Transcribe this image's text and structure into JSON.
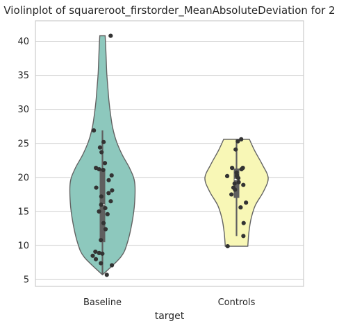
{
  "chart_data": {
    "type": "violin",
    "title": "Violinplot of squareroot_firstorder_MeanAbsoluteDeviation for 2",
    "xlabel": "target",
    "ylabel": "",
    "categories": [
      "Baseline",
      "Controls"
    ],
    "ylim": [
      4,
      43
    ],
    "yticks": [
      5,
      10,
      15,
      20,
      25,
      30,
      35,
      40
    ],
    "grid": true,
    "colors": {
      "Baseline": "#8dc8bd",
      "Controls": "#f8f7b6",
      "edge": "#636363",
      "box": "#5f5f5f",
      "points": "#333333"
    },
    "series": [
      {
        "category": "Baseline",
        "points": [
          40.8,
          26.9,
          25.2,
          24.4,
          23.7,
          22.1,
          21.4,
          21.2,
          21.1,
          20.3,
          19.6,
          18.5,
          18.1,
          17.7,
          17.2,
          16.5,
          16.0,
          15.5,
          15.0,
          14.6,
          13.3,
          12.4,
          10.8,
          9.1,
          8.9,
          8.8,
          8.5,
          8.0,
          7.4,
          7.1,
          5.7
        ],
        "box": {
          "q1": 10.5,
          "median": 16.0,
          "q3": 21.3,
          "whisker_low": 5.7,
          "whisker_high": 26.9
        },
        "density": [
          [
            5.7,
            0.0
          ],
          [
            8.3,
            0.34
          ],
          [
            10.3,
            0.46
          ],
          [
            13.3,
            0.55
          ],
          [
            16.3,
            0.6
          ],
          [
            19.3,
            0.6
          ],
          [
            21.3,
            0.51
          ],
          [
            23.3,
            0.37
          ],
          [
            25.3,
            0.26
          ],
          [
            27.3,
            0.19
          ],
          [
            29.3,
            0.15
          ],
          [
            31.3,
            0.12
          ],
          [
            33.3,
            0.1
          ],
          [
            35.3,
            0.08
          ],
          [
            37.3,
            0.07
          ],
          [
            39.3,
            0.06
          ],
          [
            40.8,
            0.05
          ]
        ]
      },
      {
        "category": "Controls",
        "points": [
          25.6,
          25.3,
          24.1,
          21.4,
          21.4,
          21.2,
          20.7,
          20.3,
          20.2,
          20.2,
          19.9,
          19.3,
          19.1,
          18.9,
          18.5,
          18.2,
          17.5,
          16.3,
          15.6,
          13.3,
          11.4,
          9.9
        ],
        "box": {
          "q1": 17.0,
          "median": 19.7,
          "q3": 21.3,
          "whisker_low": 11.4,
          "whisker_high": 25.6
        },
        "density": [
          [
            9.9,
            0.21
          ],
          [
            11.9,
            0.23
          ],
          [
            13.9,
            0.27
          ],
          [
            15.9,
            0.35
          ],
          [
            17.9,
            0.5
          ],
          [
            19.9,
            0.59
          ],
          [
            21.9,
            0.48
          ],
          [
            23.9,
            0.34
          ],
          [
            25.6,
            0.24
          ]
        ]
      }
    ]
  }
}
